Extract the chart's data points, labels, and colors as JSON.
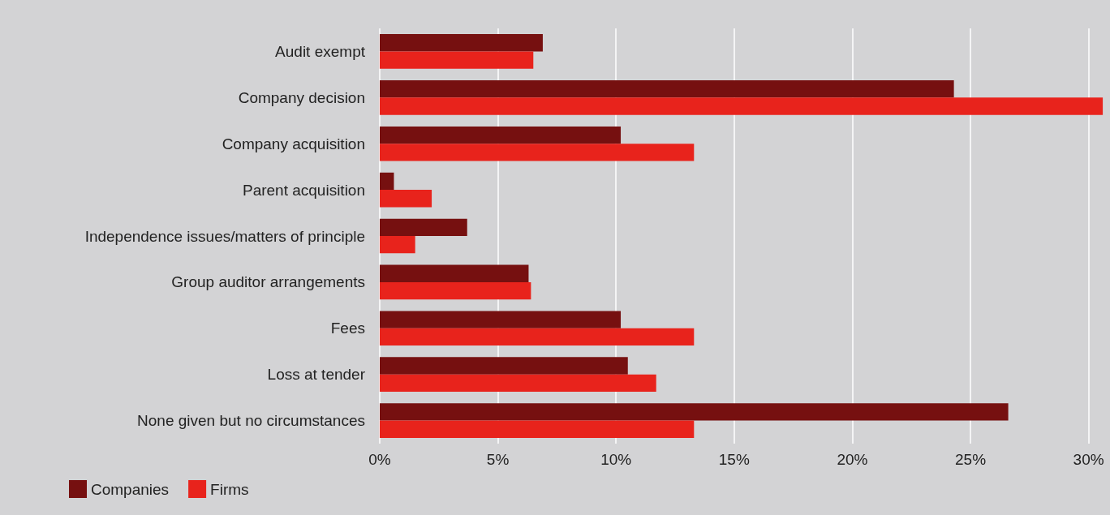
{
  "chart_data": {
    "type": "bar",
    "orientation": "horizontal",
    "categories": [
      "Audit exempt",
      "Company decision",
      "Company acquisition",
      "Parent acquisition",
      "Independence issues/matters of principle",
      "Group auditor arrangements",
      "Fees",
      "Loss at tender",
      "None given but no circumstances"
    ],
    "series": [
      {
        "name": "Companies",
        "color": "#761010",
        "values": [
          6.9,
          24.3,
          10.2,
          0.6,
          3.7,
          6.3,
          10.2,
          10.5,
          26.6
        ]
      },
      {
        "name": "Firms",
        "color": "#e8231c",
        "values": [
          6.5,
          30.6,
          13.3,
          2.2,
          1.5,
          6.4,
          13.3,
          11.7,
          13.3
        ]
      }
    ],
    "xlim": [
      0,
      30.7
    ],
    "xticks": [
      {
        "value": 0,
        "label": "0%"
      },
      {
        "value": 5,
        "label": "5%"
      },
      {
        "value": 10,
        "label": "10%"
      },
      {
        "value": 15,
        "label": "15%"
      },
      {
        "value": 20,
        "label": "20%"
      },
      {
        "value": 25,
        "label": "25%"
      },
      {
        "value": 30,
        "label": "30%"
      }
    ],
    "grid": "x",
    "legend": "bottom left"
  }
}
